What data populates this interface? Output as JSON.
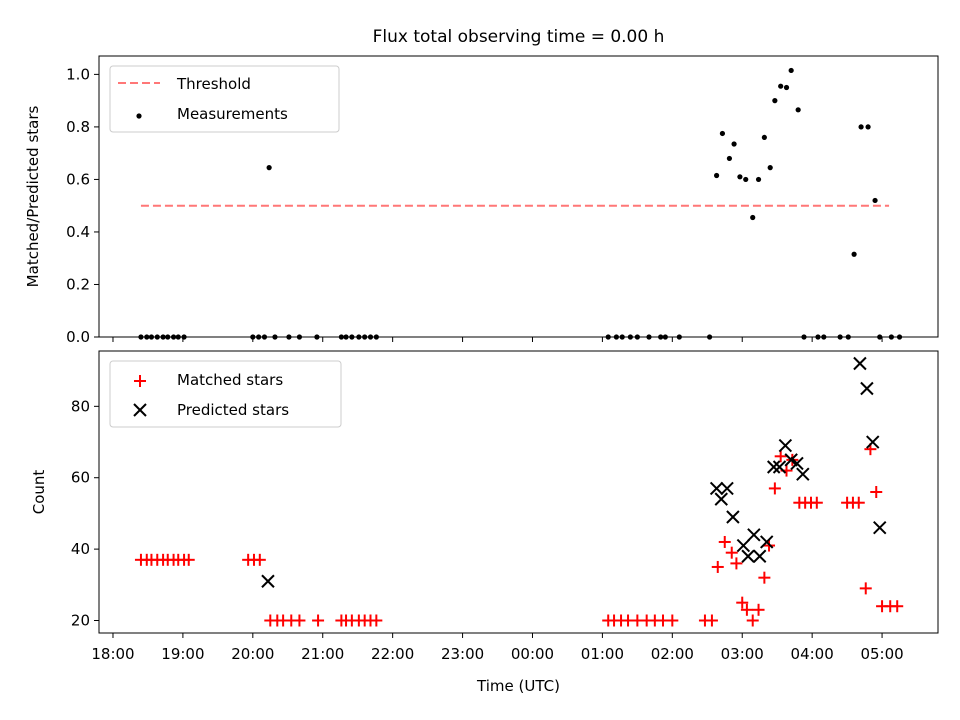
{
  "chart_data": [
    {
      "type": "scatter",
      "title": "Flux total observing time = 0.00 h",
      "xlabel": "",
      "ylabel": "Matched/Predicted stars",
      "xlim": [
        "17:48",
        "05:48"
      ],
      "ylim": [
        0,
        1.07
      ],
      "yticks": [
        "0.0",
        "0.2",
        "0.4",
        "0.6",
        "0.8",
        "1.0"
      ],
      "legend_position": "top-left",
      "grid": false,
      "threshold": {
        "name": "Threshold",
        "value": 0.5,
        "x_range": [
          "18:24",
          "05:06"
        ],
        "color": "#ff7777",
        "style": "dashed"
      },
      "series": [
        {
          "name": "Measurements",
          "marker": "dot",
          "color": "#000000",
          "x": [
            "18:24",
            "18:29",
            "18:33",
            "18:38",
            "18:43",
            "18:47",
            "18:52",
            "18:56",
            "19:01",
            "20:00",
            "20:05",
            "20:10",
            "20:14",
            "20:19",
            "20:31",
            "20:40",
            "20:55",
            "21:16",
            "21:20",
            "21:25",
            "21:31",
            "21:36",
            "21:41",
            "21:46",
            "01:05",
            "01:12",
            "01:17",
            "01:24",
            "01:30",
            "01:40",
            "01:50",
            "01:54",
            "02:06",
            "02:32",
            "02:38",
            "02:43",
            "02:49",
            "02:53",
            "02:58",
            "03:03",
            "03:09",
            "03:14",
            "03:19",
            "03:24",
            "03:28",
            "03:33",
            "03:38",
            "03:42",
            "03:48",
            "03:53",
            "04:05",
            "04:10",
            "04:24",
            "04:31",
            "04:36",
            "04:42",
            "04:48",
            "04:54",
            "04:58",
            "05:08",
            "05:15"
          ],
          "y": [
            0,
            0,
            0,
            0,
            0,
            0,
            0,
            0,
            0,
            0,
            0,
            0,
            0.645,
            0,
            0,
            0,
            0,
            0,
            0,
            0,
            0,
            0,
            0,
            0,
            0,
            0,
            0,
            0,
            0,
            0,
            0,
            0,
            0,
            0,
            0.615,
            0.775,
            0.68,
            0.735,
            0.61,
            0.6,
            0.455,
            0.6,
            0.76,
            0.645,
            0.9,
            0.955,
            0.95,
            1.015,
            0.865,
            0,
            0,
            0,
            0,
            0,
            0.315,
            0.8,
            0.8,
            0.52,
            0,
            0,
            0
          ]
        }
      ]
    },
    {
      "type": "scatter",
      "xlabel": "Time (UTC)",
      "ylabel": "Count",
      "xlim": [
        "17:48",
        "05:48"
      ],
      "ylim": [
        16.5,
        95.5
      ],
      "xticks": [
        "18:00",
        "19:00",
        "20:00",
        "21:00",
        "22:00",
        "23:00",
        "00:00",
        "01:00",
        "02:00",
        "03:00",
        "04:00",
        "05:00"
      ],
      "yticks": [
        "20",
        "40",
        "60",
        "80"
      ],
      "legend_position": "top-left",
      "grid": false,
      "series": [
        {
          "name": "Matched stars",
          "marker": "plus",
          "color": "#ff0000",
          "x": [
            "18:24",
            "18:29",
            "18:33",
            "18:38",
            "18:43",
            "18:47",
            "18:52",
            "18:56",
            "19:01",
            "19:05",
            "19:56",
            "20:01",
            "20:06",
            "20:15",
            "20:21",
            "20:26",
            "20:33",
            "20:40",
            "20:56",
            "21:16",
            "21:20",
            "21:25",
            "21:31",
            "21:36",
            "21:41",
            "21:46",
            "01:05",
            "01:10",
            "01:16",
            "01:22",
            "01:30",
            "01:38",
            "01:45",
            "01:52",
            "02:00",
            "02:28",
            "02:34",
            "02:39",
            "02:45",
            "02:51",
            "02:55",
            "03:00",
            "03:04",
            "03:09",
            "03:14",
            "03:19",
            "03:23",
            "03:28",
            "03:33",
            "03:38",
            "03:43",
            "03:49",
            "03:54",
            "03:59",
            "04:04",
            "04:30",
            "04:35",
            "04:40",
            "04:46",
            "04:50",
            "04:55",
            "05:00",
            "05:07",
            "05:13"
          ],
          "y": [
            37,
            37,
            37,
            37,
            37,
            37,
            37,
            37,
            37,
            37,
            37,
            37,
            37,
            20,
            20,
            20,
            20,
            20,
            20,
            20,
            20,
            20,
            20,
            20,
            20,
            20,
            20,
            20,
            20,
            20,
            20,
            20,
            20,
            20,
            20,
            20,
            20,
            35,
            42,
            39,
            36,
            25,
            23,
            20,
            23,
            32,
            41,
            57,
            66,
            62,
            65,
            53,
            53,
            53,
            53,
            53,
            53,
            53,
            29,
            68,
            56,
            24,
            24,
            24
          ],
          "y_fix": [
            37,
            37,
            37,
            37,
            37,
            37,
            37,
            37,
            37,
            37,
            37,
            37,
            37,
            20,
            20,
            20,
            20,
            20,
            20,
            20,
            20,
            20,
            20,
            20,
            20,
            20,
            20,
            20,
            20,
            20,
            20,
            20,
            20,
            20,
            20,
            20,
            20,
            35,
            42,
            39,
            36,
            25,
            23,
            20,
            23,
            32,
            41,
            57,
            66,
            62,
            65,
            53,
            53,
            53,
            53,
            53,
            53,
            53,
            29,
            68,
            56,
            24,
            24,
            24
          ]
        },
        {
          "name": "Predicted stars",
          "marker": "x",
          "color": "#000000",
          "x": [
            "20:13",
            "02:38",
            "02:42",
            "02:47",
            "02:52",
            "03:01",
            "03:05",
            "03:10",
            "03:15",
            "03:21",
            "03:27",
            "03:32",
            "03:37",
            "03:42",
            "03:47",
            "03:52",
            "04:41",
            "04:47",
            "04:52",
            "04:58"
          ],
          "y": [
            31,
            57,
            54,
            57,
            49,
            41,
            38,
            44,
            38,
            42,
            63,
            63,
            69,
            65,
            64,
            61,
            92,
            85,
            70,
            46
          ]
        }
      ]
    }
  ]
}
